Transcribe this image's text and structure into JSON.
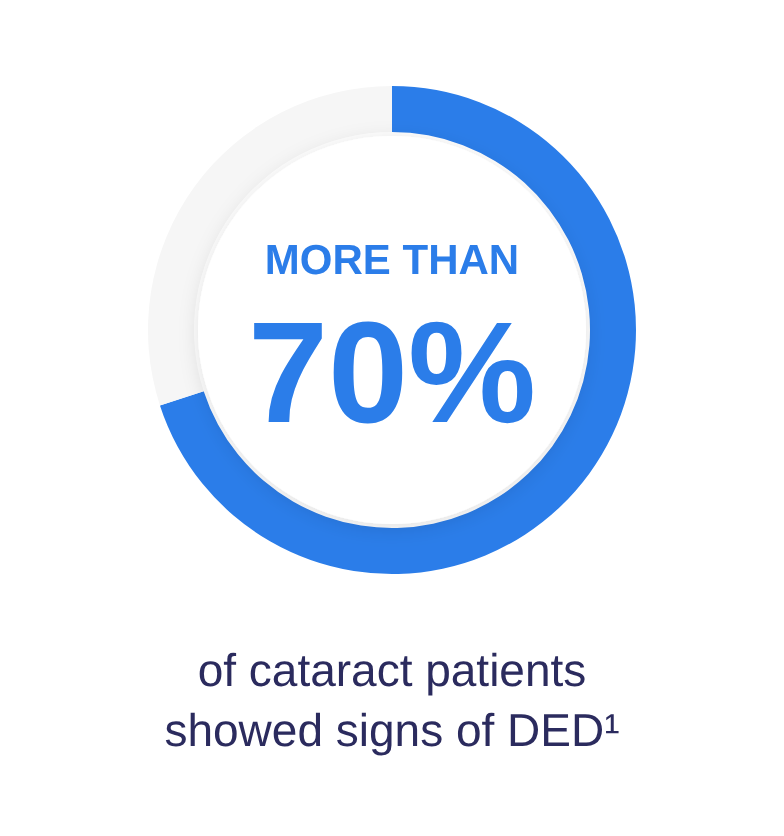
{
  "chart_data": {
    "type": "donut",
    "categories": [
      null,
      null
    ],
    "values": [
      70,
      30
    ],
    "colors": [
      "#2b7de9",
      "#f6f6f6"
    ],
    "value_labels": [
      "70%",
      null
    ],
    "annotations": [
      "MORE THAN",
      "of cataract patients showed signs of DED¹"
    ]
  }
}
